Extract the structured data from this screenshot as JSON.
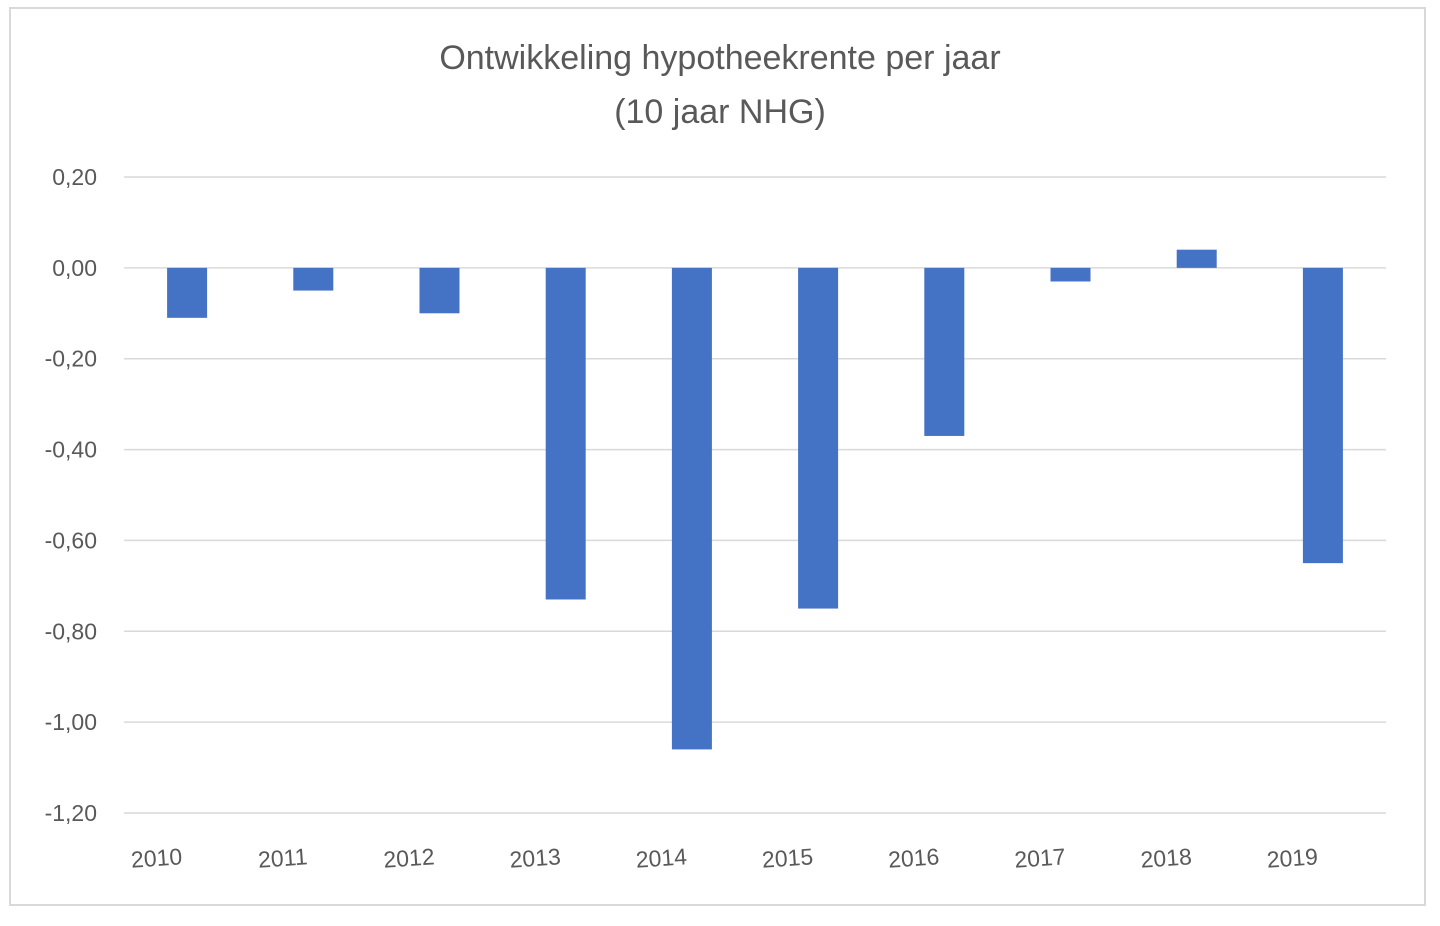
{
  "colors": {
    "bar": "#4472c4",
    "gridline": "#d9d9d9",
    "text": "#595959",
    "border": "#d9d9d9"
  },
  "chart_data": {
    "type": "bar",
    "title_lines": [
      "Ontwikkeling hypotheekrente per jaar",
      "(10 jaar NHG)"
    ],
    "xlabel": "",
    "ylabel": "",
    "categories": [
      "2010",
      "2011",
      "2012",
      "2013",
      "2014",
      "2015",
      "2016",
      "2017",
      "2018",
      "2019"
    ],
    "values": [
      -0.11,
      -0.05,
      -0.1,
      -0.73,
      -1.06,
      -0.75,
      -0.37,
      -0.03,
      0.04,
      -0.65
    ],
    "ylim": [
      -1.2,
      0.2
    ],
    "yticks": [
      0.2,
      0.0,
      -0.2,
      -0.4,
      -0.6,
      -0.8,
      -1.0,
      -1.2
    ],
    "ytick_labels": [
      "0,20",
      "0,00",
      "-0,20",
      "-0,40",
      "-0,60",
      "-0,80",
      "-1,00",
      "-1,20"
    ],
    "grid": true,
    "legend": "none"
  }
}
